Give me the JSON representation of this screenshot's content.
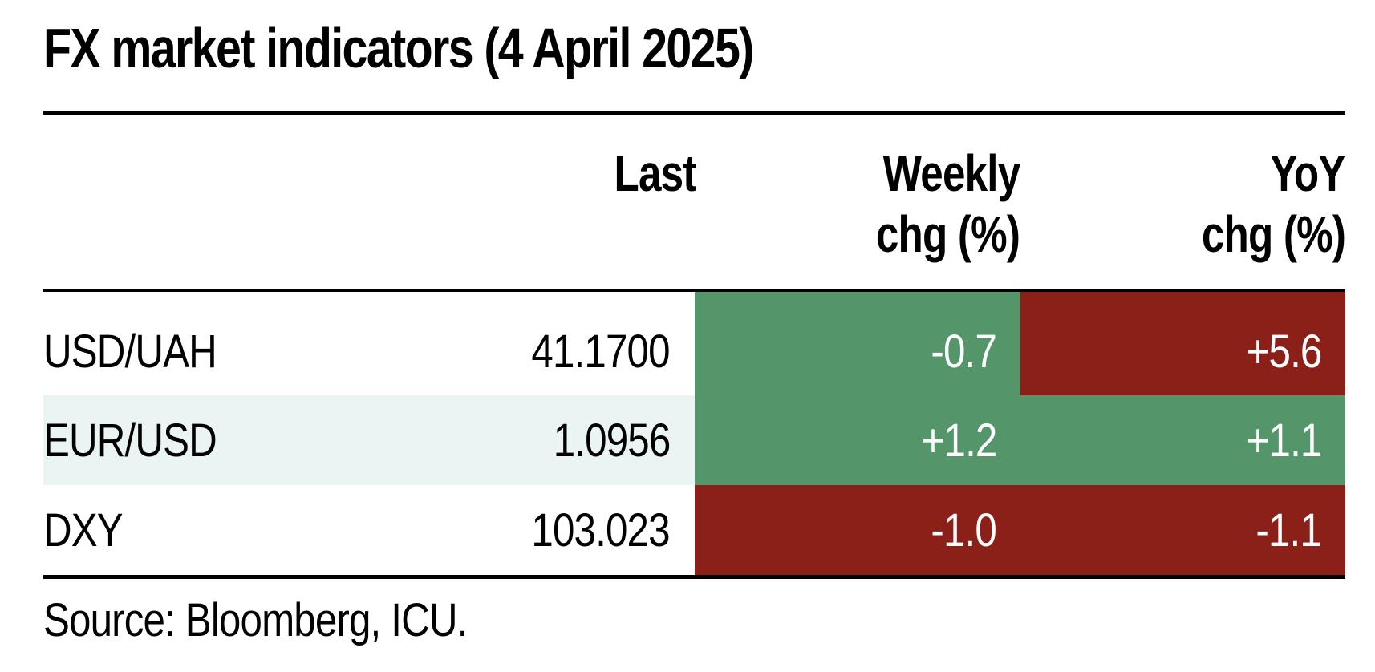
{
  "title": "FX market indicators (4 April 2025)",
  "columns": {
    "last": "Last",
    "weekly_line1": "Weekly",
    "weekly_line2": "chg (%)",
    "yoy_line1": "YoY",
    "yoy_line2": "chg (%)"
  },
  "rows": [
    {
      "label": "USD/UAH",
      "last": "41.1700",
      "weekly": "-0.7",
      "yoy": "+5.6"
    },
    {
      "label": "EUR/USD",
      "last": "1.0956",
      "weekly": "+1.2",
      "yoy": "+1.1"
    },
    {
      "label": "DXY",
      "last": "103.023",
      "weekly": "-1.0",
      "yoy": "-1.1"
    }
  ],
  "colors": {
    "positive_green": "#54966a",
    "negative_red": "#8b2019",
    "stripe_row": "#eaf4f2"
  },
  "source": "Source: Bloomberg, ICU."
}
